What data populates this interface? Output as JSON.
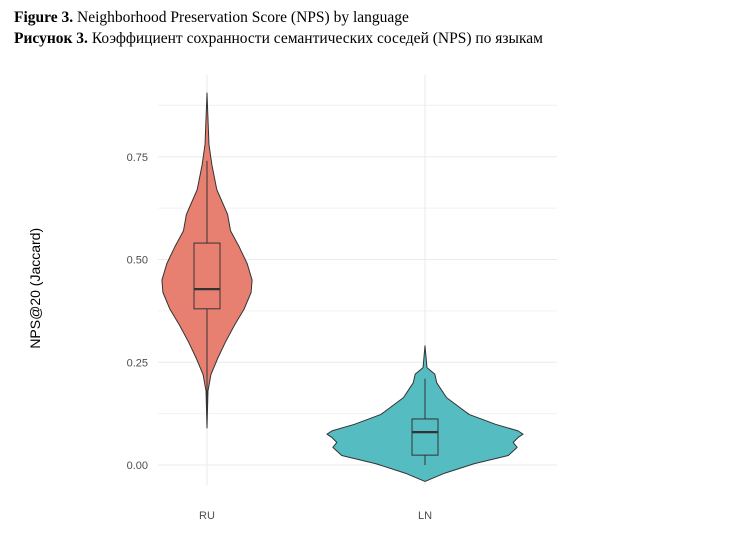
{
  "caption": {
    "line1_bold": "Figure 3.",
    "line1_text": " Neighborhood Preservation Score (NPS) by language",
    "line2_bold": "Рисунок 3.",
    "line2_text": " Коэффициент сохранности семантических соседей (NPS) по языкам"
  },
  "chart_data": {
    "type": "violin",
    "title": "Neighborhood Preservation Score (NPS) by language",
    "xlabel": "",
    "ylabel": "NPS@20 (Jaccard)",
    "ylim": [
      -0.04,
      0.93
    ],
    "yticks": [
      0,
      0.25,
      0.5,
      0.75
    ],
    "ytick_labels": [
      "0.00",
      "0.25",
      "0.50",
      "0.75"
    ],
    "categories": [
      "RU",
      "LN"
    ],
    "grid": true,
    "series": [
      {
        "name": "RU",
        "color": "#E88072",
        "box": {
          "whisker_low": 0.09,
          "q1": 0.38,
          "median": 0.428,
          "q3": 0.54,
          "whisker_high": 0.74
        },
        "density": [
          [
            0.905,
            0
          ],
          [
            0.78,
            0.02
          ],
          [
            0.73,
            0.05
          ],
          [
            0.67,
            0.1
          ],
          [
            0.61,
            0.21
          ],
          [
            0.57,
            0.24
          ],
          [
            0.53,
            0.33
          ],
          [
            0.49,
            0.41
          ],
          [
            0.45,
            0.46
          ],
          [
            0.42,
            0.45
          ],
          [
            0.38,
            0.38
          ],
          [
            0.34,
            0.28
          ],
          [
            0.3,
            0.19
          ],
          [
            0.26,
            0.11
          ],
          [
            0.22,
            0.04
          ],
          [
            0.18,
            0.01
          ],
          [
            0.09,
            0
          ]
        ]
      },
      {
        "name": "LN",
        "color": "#55BCC2",
        "box": {
          "whisker_low": 0.0,
          "q1": 0.024,
          "median": 0.08,
          "q3": 0.112,
          "whisker_high": 0.21
        },
        "density": [
          [
            0.29,
            0
          ],
          [
            0.237,
            0.02
          ],
          [
            0.221,
            0.1
          ],
          [
            0.2,
            0.12
          ],
          [
            0.164,
            0.22
          ],
          [
            0.139,
            0.36
          ],
          [
            0.123,
            0.45
          ],
          [
            0.099,
            0.72
          ],
          [
            0.083,
            0.95
          ],
          [
            0.075,
            1.0
          ],
          [
            0.067,
            0.95
          ],
          [
            0.055,
            0.9
          ],
          [
            0.043,
            0.94
          ],
          [
            0.023,
            0.85
          ],
          [
            0.003,
            0.5
          ],
          [
            -0.02,
            0.2
          ],
          [
            -0.04,
            0
          ]
        ]
      }
    ]
  }
}
